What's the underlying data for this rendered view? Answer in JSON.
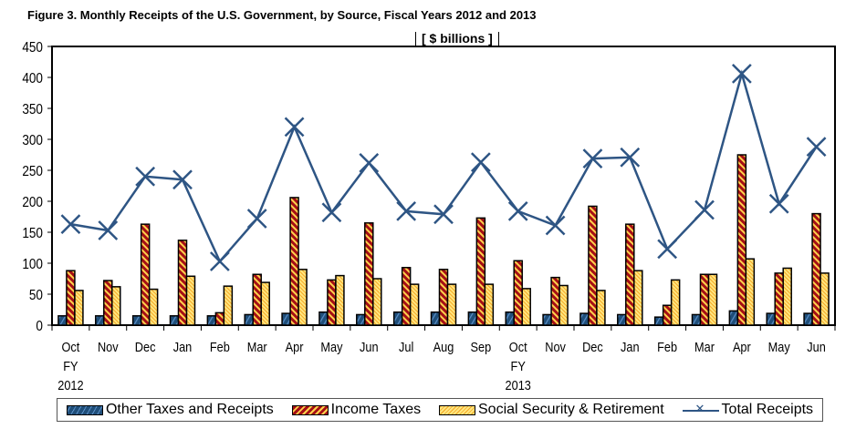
{
  "chart_data": {
    "type": "bar",
    "title": "Figure 3.  Monthly Receipts of the U.S. Government, by Source, Fiscal Years 2012 and 2013",
    "unit_label": "[ $ billions ]",
    "categories": [
      "Oct",
      "Nov",
      "Dec",
      "Jan",
      "Feb",
      "Mar",
      "Apr",
      "May",
      "Jun",
      "Jul",
      "Aug",
      "Sep",
      "Oct",
      "Nov",
      "Dec",
      "Jan",
      "Feb",
      "Mar",
      "Apr",
      "May",
      "Jun"
    ],
    "category_sublabels": {
      "0": [
        "FY",
        "2012"
      ],
      "12": [
        "FY",
        "2013"
      ]
    },
    "ylim": [
      0,
      450
    ],
    "yticks": [
      0,
      50,
      100,
      150,
      200,
      250,
      300,
      350,
      400,
      450
    ],
    "grid": false,
    "legend_position": "bottom",
    "series": [
      {
        "name": "Other Taxes and Receipts",
        "type": "bar",
        "color": "#1f4e79",
        "values": [
          15,
          15,
          15,
          15,
          15,
          17,
          19,
          21,
          17,
          21,
          21,
          21,
          21,
          17,
          19,
          17,
          13,
          17,
          23,
          19,
          19
        ]
      },
      {
        "name": "Income Taxes",
        "type": "bar",
        "color": "#a50f15",
        "values": [
          88,
          72,
          163,
          137,
          20,
          82,
          206,
          73,
          165,
          93,
          90,
          173,
          104,
          77,
          192,
          163,
          32,
          82,
          275,
          84,
          180
        ]
      },
      {
        "name": "Social Security & Retirement",
        "type": "bar",
        "color": "#ffd966",
        "values": [
          56,
          62,
          58,
          79,
          63,
          69,
          90,
          80,
          75,
          66,
          66,
          66,
          59,
          64,
          56,
          88,
          73,
          82,
          107,
          92,
          84
        ]
      },
      {
        "name": "Total Receipts",
        "type": "line",
        "color": "#2e5584",
        "values": [
          163,
          153,
          240,
          235,
          103,
          172,
          320,
          182,
          262,
          184,
          179,
          263,
          184,
          161,
          269,
          271,
          123,
          186,
          406,
          196,
          288
        ]
      }
    ]
  }
}
